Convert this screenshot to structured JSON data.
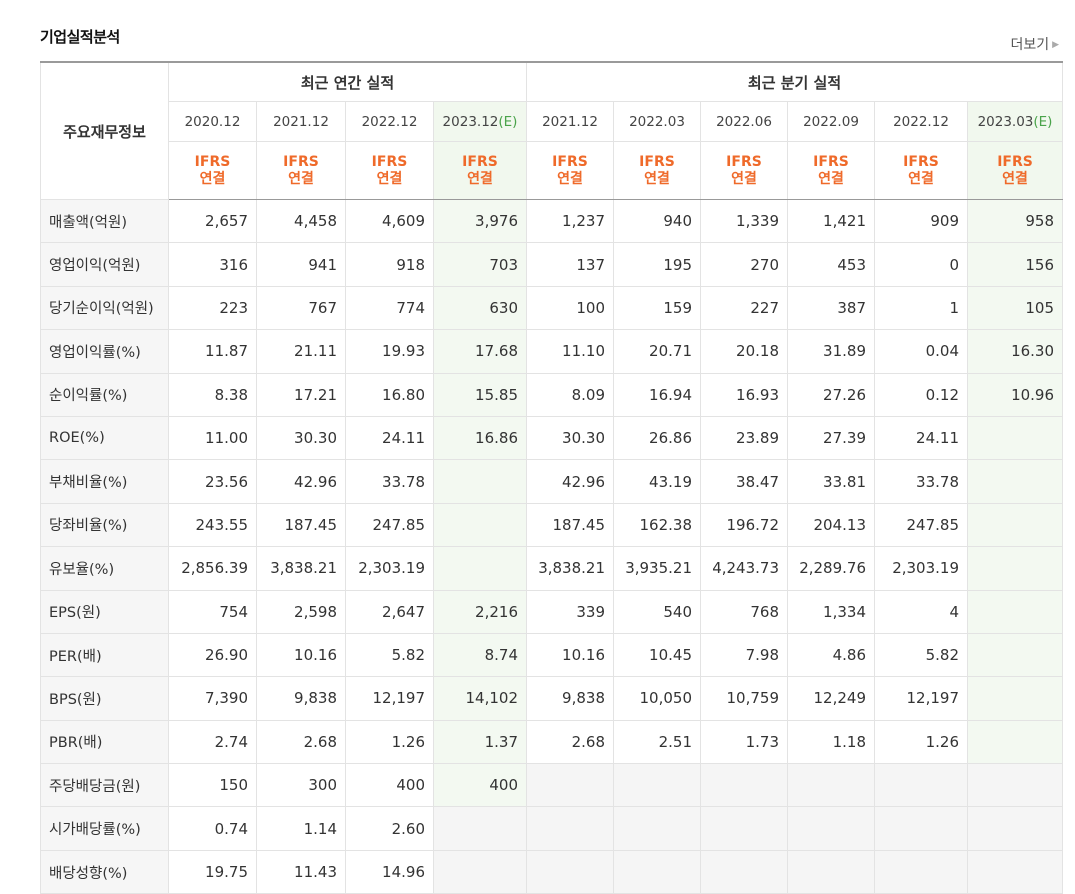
{
  "header": {
    "title": "기업실적분석",
    "more_label": "더보기"
  },
  "table": {
    "item_header": "주요재무정보",
    "group_annual": "최근 연간 실적",
    "group_quarter": "최근 분기 실적",
    "ifrs_top": "IFRS",
    "ifrs_bottom": "연결",
    "periods": [
      {
        "label": "2020.12",
        "est": ""
      },
      {
        "label": "2021.12",
        "est": ""
      },
      {
        "label": "2022.12",
        "est": ""
      },
      {
        "label": "2023.12",
        "est": "(E)"
      },
      {
        "label": "2021.12",
        "est": ""
      },
      {
        "label": "2022.03",
        "est": ""
      },
      {
        "label": "2022.06",
        "est": ""
      },
      {
        "label": "2022.09",
        "est": ""
      },
      {
        "label": "2022.12",
        "est": ""
      },
      {
        "label": "2023.03",
        "est": "(E)"
      }
    ],
    "rows": [
      {
        "label": "매출액(억원)",
        "values": [
          "2,657",
          "4,458",
          "4,609",
          "3,976",
          "1,237",
          "940",
          "1,339",
          "1,421",
          "909",
          "958"
        ]
      },
      {
        "label": "영업이익(억원)",
        "values": [
          "316",
          "941",
          "918",
          "703",
          "137",
          "195",
          "270",
          "453",
          "0",
          "156"
        ]
      },
      {
        "label": "당기순이익(억원)",
        "values": [
          "223",
          "767",
          "774",
          "630",
          "100",
          "159",
          "227",
          "387",
          "1",
          "105"
        ]
      },
      {
        "label": "영업이익률(%)",
        "values": [
          "11.87",
          "21.11",
          "19.93",
          "17.68",
          "11.10",
          "20.71",
          "20.18",
          "31.89",
          "0.04",
          "16.30"
        ]
      },
      {
        "label": "순이익률(%)",
        "values": [
          "8.38",
          "17.21",
          "16.80",
          "15.85",
          "8.09",
          "16.94",
          "16.93",
          "27.26",
          "0.12",
          "10.96"
        ]
      },
      {
        "label": "ROE(%)",
        "values": [
          "11.00",
          "30.30",
          "24.11",
          "16.86",
          "30.30",
          "26.86",
          "23.89",
          "27.39",
          "24.11",
          ""
        ]
      },
      {
        "label": "부채비율(%)",
        "values": [
          "23.56",
          "42.96",
          "33.78",
          "",
          "42.96",
          "43.19",
          "38.47",
          "33.81",
          "33.78",
          ""
        ]
      },
      {
        "label": "당좌비율(%)",
        "values": [
          "243.55",
          "187.45",
          "247.85",
          "",
          "187.45",
          "162.38",
          "196.72",
          "204.13",
          "247.85",
          ""
        ]
      },
      {
        "label": "유보율(%)",
        "values": [
          "2,856.39",
          "3,838.21",
          "2,303.19",
          "",
          "3,838.21",
          "3,935.21",
          "4,243.73",
          "2,289.76",
          "2,303.19",
          ""
        ]
      },
      {
        "label": "EPS(원)",
        "values": [
          "754",
          "2,598",
          "2,647",
          "2,216",
          "339",
          "540",
          "768",
          "1,334",
          "4",
          ""
        ]
      },
      {
        "label": "PER(배)",
        "values": [
          "26.90",
          "10.16",
          "5.82",
          "8.74",
          "10.16",
          "10.45",
          "7.98",
          "4.86",
          "5.82",
          ""
        ]
      },
      {
        "label": "BPS(원)",
        "values": [
          "7,390",
          "9,838",
          "12,197",
          "14,102",
          "9,838",
          "10,050",
          "10,759",
          "12,249",
          "12,197",
          ""
        ]
      },
      {
        "label": "PBR(배)",
        "values": [
          "2.74",
          "2.68",
          "1.26",
          "1.37",
          "2.68",
          "2.51",
          "1.73",
          "1.18",
          "1.26",
          ""
        ]
      },
      {
        "label": "주당배당금(원)",
        "values": [
          "150",
          "300",
          "400",
          "400",
          "",
          "",
          "",
          "",
          "",
          ""
        ]
      },
      {
        "label": "시가배당률(%)",
        "values": [
          "0.74",
          "1.14",
          "2.60",
          "",
          "",
          "",
          "",
          "",
          "",
          ""
        ]
      },
      {
        "label": "배당성향(%)",
        "values": [
          "19.75",
          "11.43",
          "14.96",
          "",
          "",
          "",
          "",
          "",
          "",
          ""
        ]
      }
    ],
    "separator_before": [
      3,
      6,
      9,
      13
    ],
    "empty_cells_grey_from_row": 13
  }
}
